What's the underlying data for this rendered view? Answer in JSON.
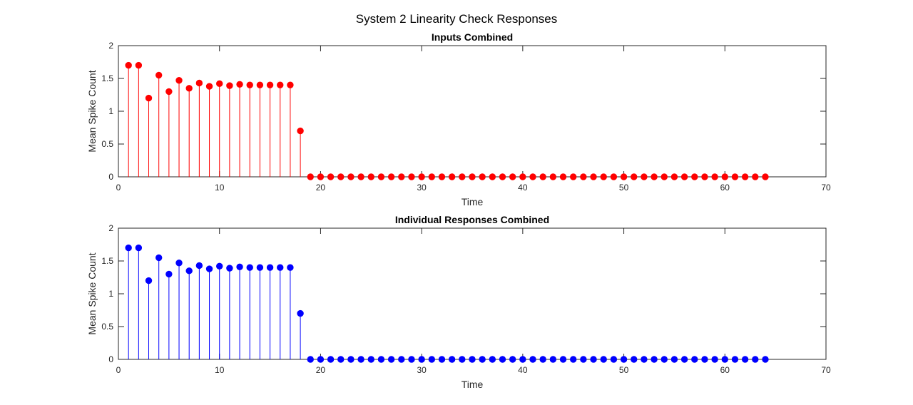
{
  "figure": {
    "suptitle": "System 2 Linearity Check Responses"
  },
  "chart_data": [
    {
      "type": "stem",
      "title": "Inputs Combined",
      "xlabel": "Time",
      "ylabel": "Mean Spike Count",
      "xlim": [
        0,
        70
      ],
      "ylim": [
        0,
        2
      ],
      "xticks": [
        0,
        10,
        20,
        30,
        40,
        50,
        60,
        70
      ],
      "yticks": [
        0,
        0.5,
        1,
        1.5,
        2
      ],
      "ytick_labels": [
        "0",
        "0.5",
        "1",
        "1.5",
        "2"
      ],
      "grid": false,
      "color": "#ff0000",
      "x": [
        1,
        2,
        3,
        4,
        5,
        6,
        7,
        8,
        9,
        10,
        11,
        12,
        13,
        14,
        15,
        16,
        17,
        18,
        19,
        20,
        21,
        22,
        23,
        24,
        25,
        26,
        27,
        28,
        29,
        30,
        31,
        32,
        33,
        34,
        35,
        36,
        37,
        38,
        39,
        40,
        41,
        42,
        43,
        44,
        45,
        46,
        47,
        48,
        49,
        50,
        51,
        52,
        53,
        54,
        55,
        56,
        57,
        58,
        59,
        60,
        61,
        62,
        63,
        64
      ],
      "values": [
        1.7,
        1.7,
        1.2,
        1.55,
        1.3,
        1.47,
        1.35,
        1.43,
        1.38,
        1.42,
        1.39,
        1.41,
        1.4,
        1.4,
        1.4,
        1.4,
        1.4,
        0.7,
        0,
        0,
        0,
        0,
        0,
        0,
        0,
        0,
        0,
        0,
        0,
        0,
        0,
        0,
        0,
        0,
        0,
        0,
        0,
        0,
        0,
        0,
        0,
        0,
        0,
        0,
        0,
        0,
        0,
        0,
        0,
        0,
        0,
        0,
        0,
        0,
        0,
        0,
        0,
        0,
        0,
        0,
        0,
        0,
        0,
        0
      ]
    },
    {
      "type": "stem",
      "title": "Individual Responses Combined",
      "xlabel": "Time",
      "ylabel": "Mean Spike Count",
      "xlim": [
        0,
        70
      ],
      "ylim": [
        0,
        2
      ],
      "xticks": [
        0,
        10,
        20,
        30,
        40,
        50,
        60,
        70
      ],
      "yticks": [
        0,
        0.5,
        1,
        1.5,
        2
      ],
      "ytick_labels": [
        "0",
        "0.5",
        "1",
        "1.5",
        "2"
      ],
      "grid": false,
      "color": "#0000ff",
      "x": [
        1,
        2,
        3,
        4,
        5,
        6,
        7,
        8,
        9,
        10,
        11,
        12,
        13,
        14,
        15,
        16,
        17,
        18,
        19,
        20,
        21,
        22,
        23,
        24,
        25,
        26,
        27,
        28,
        29,
        30,
        31,
        32,
        33,
        34,
        35,
        36,
        37,
        38,
        39,
        40,
        41,
        42,
        43,
        44,
        45,
        46,
        47,
        48,
        49,
        50,
        51,
        52,
        53,
        54,
        55,
        56,
        57,
        58,
        59,
        60,
        61,
        62,
        63,
        64
      ],
      "values": [
        1.7,
        1.7,
        1.2,
        1.55,
        1.3,
        1.47,
        1.35,
        1.43,
        1.38,
        1.42,
        1.39,
        1.41,
        1.4,
        1.4,
        1.4,
        1.4,
        1.4,
        0.7,
        0,
        0,
        0,
        0,
        0,
        0,
        0,
        0,
        0,
        0,
        0,
        0,
        0,
        0,
        0,
        0,
        0,
        0,
        0,
        0,
        0,
        0,
        0,
        0,
        0,
        0,
        0,
        0,
        0,
        0,
        0,
        0,
        0,
        0,
        0,
        0,
        0,
        0,
        0,
        0,
        0,
        0,
        0,
        0,
        0,
        0
      ]
    }
  ]
}
